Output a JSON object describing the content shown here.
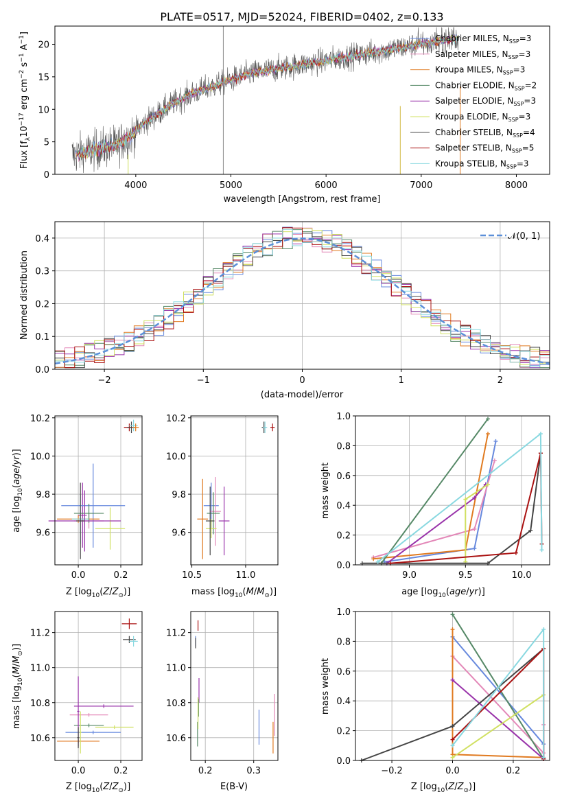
{
  "chart_data": [
    {
      "id": "spectrum",
      "type": "line",
      "title": "PLATE=0517, MJD=52024, FIBERID=0402, z=0.133",
      "xlabel": "wavelength [Angstrom, rest frame]",
      "ylabel": "Flux [f_λ10^-17 erg cm^-2 s^-1 A^-1]",
      "xlim": [
        3150,
        8350
      ],
      "ylim": [
        0,
        22.8
      ],
      "xticks": [
        "4000",
        "5000",
        "6000",
        "7000",
        "8000"
      ],
      "yticks": [
        "0",
        "5",
        "10",
        "15",
        "20"
      ],
      "grid": false,
      "legend_position": "top-right",
      "legend": [
        "Chabrier MILES, N_SSP=3",
        "Salpeter MILES, N_SSP=3",
        "Kroupa MILES, N_SSP=3",
        "Chabrier ELODIE, N_SSP=2",
        "Salpeter ELODIE, N_SSP=3",
        "Kroupa ELODIE, N_SSP=3",
        "Chabrier STELIB, N_SSP=4",
        "Salpeter STELIB, N_SSP=5",
        "Kroupa STELIB, N_SSP=3"
      ],
      "series_colors": [
        "#6688dd",
        "#e388b8",
        "#e07a20",
        "#558866",
        "#9933aa",
        "#d0e060",
        "#444444",
        "#aa1111",
        "#88d8e0"
      ],
      "continuum": {
        "x": [
          3350,
          3500,
          3650,
          3800,
          3950,
          4100,
          4250,
          4400,
          4600,
          4800,
          5000,
          5200,
          5400,
          5600,
          5800,
          6000,
          6200,
          6400,
          6600,
          6800,
          7000,
          7200,
          7400
        ],
        "y": [
          3,
          3.5,
          4,
          4.5,
          6,
          8,
          9.5,
          11,
          12.5,
          13.5,
          14.5,
          15.5,
          16,
          16.5,
          17,
          17.5,
          18,
          18.5,
          19,
          19.5,
          20,
          20.5,
          21
        ]
      }
    },
    {
      "id": "residuals",
      "type": "histogram",
      "xlabel": "(data-model)/error",
      "ylabel": "Normed distribution",
      "xlim": [
        -2.5,
        2.5
      ],
      "ylim": [
        0,
        0.45
      ],
      "xticks": [
        "−2",
        "−1",
        "0",
        "1",
        "2"
      ],
      "yticks": [
        "0.0",
        "0.1",
        "0.2",
        "0.3",
        "0.4"
      ],
      "grid": true,
      "legend_position": "top-right",
      "legend": [
        "𝒩(0, 1)"
      ],
      "reference_curve": {
        "mean": 0,
        "sigma": 1,
        "color": "#5b8fd8"
      },
      "bins": 50
    },
    {
      "id": "age-vs-Z",
      "type": "errorbar",
      "xlabel": "Z [log10(Z/Z⊙)]",
      "ylabel": "age  [log10(age/yr)]",
      "xlim": [
        -0.11,
        0.3
      ],
      "ylim": [
        9.43,
        10.21
      ],
      "xticks": [
        {
          "v": 0,
          "t": "0.0"
        },
        {
          "v": 0.2,
          "t": "0.2"
        }
      ],
      "yticks": [
        {
          "v": 9.6,
          "t": "9.6"
        },
        {
          "v": 9.8,
          "t": "9.8"
        },
        {
          "v": 10,
          "t": "10.0"
        },
        {
          "v": 10.2,
          "t": "10.2"
        }
      ],
      "points": [
        {
          "x": 0.02,
          "y": 9.69,
          "xerr": 0.02,
          "yerr": 0.17,
          "color": "#9933aa"
        },
        {
          "x": 0.07,
          "y": 9.74,
          "xerr": 0.15,
          "yerr": 0.22,
          "color": "#6688dd"
        },
        {
          "x": 0.05,
          "y": 9.66,
          "xerr": 0.07,
          "yerr": 0.04,
          "color": "#e388b8"
        },
        {
          "x": 0.0,
          "y": 9.67,
          "xerr": 0.1,
          "yerr": 0.02,
          "color": "#e07a20"
        },
        {
          "x": 0.05,
          "y": 9.7,
          "xerr": 0.07,
          "yerr": 0.05,
          "color": "#558866"
        },
        {
          "x": 0.15,
          "y": 9.62,
          "xerr": 0.07,
          "yerr": 0.11,
          "color": "#d0e060"
        },
        {
          "x": 0.01,
          "y": 9.67,
          "xerr": 0.04,
          "yerr": 0.13,
          "color": "#88d8e0"
        },
        {
          "x": 0.03,
          "y": 9.66,
          "xerr": 0.17,
          "yerr": 0.16,
          "color": "#9933aa"
        },
        {
          "x": 0.01,
          "y": 9.66,
          "xerr": 0.02,
          "yerr": 0.2,
          "color": "#444444"
        },
        {
          "x": 0.24,
          "y": 10.15,
          "xerr": 0.025,
          "yerr": 0.02,
          "color": "#aa1111"
        },
        {
          "x": 0.25,
          "y": 10.15,
          "xerr": 0.02,
          "yerr": 0.03,
          "color": "#444444"
        },
        {
          "x": 0.26,
          "y": 10.16,
          "xerr": 0.02,
          "yerr": 0.03,
          "color": "#88d8e0"
        },
        {
          "x": 0.27,
          "y": 10.15,
          "xerr": 0.015,
          "yerr": 0.02,
          "color": "#e07a20"
        }
      ]
    },
    {
      "id": "age-vs-mass",
      "type": "errorbar",
      "xlabel": "mass [log10(M/M⊙)]",
      "ylabel": "",
      "xlim": [
        10.49,
        11.3
      ],
      "ylim": [
        9.43,
        10.21
      ],
      "xticks": [
        {
          "v": 10.5,
          "t": "10.5"
        },
        {
          "v": 11,
          "t": "11.0"
        }
      ],
      "yticks": [
        {
          "v": 9.6,
          "t": "9.6"
        },
        {
          "v": 9.8,
          "t": "9.8"
        },
        {
          "v": 10,
          "t": "10.0"
        },
        {
          "v": 10.2,
          "t": "10.2"
        }
      ],
      "points": [
        {
          "x": 10.68,
          "y": 9.74,
          "xerr": 0.07,
          "yerr": 0.12,
          "color": "#6688dd"
        },
        {
          "x": 10.6,
          "y": 9.67,
          "xerr": 0.05,
          "yerr": 0.21,
          "color": "#e07a20"
        },
        {
          "x": 10.72,
          "y": 9.71,
          "xerr": 0.05,
          "yerr": 0.18,
          "color": "#e388b8"
        },
        {
          "x": 10.7,
          "y": 9.7,
          "xerr": 0.06,
          "yerr": 0.11,
          "color": "#558866"
        },
        {
          "x": 10.8,
          "y": 9.66,
          "xerr": 0.05,
          "yerr": 0.18,
          "color": "#9933aa"
        },
        {
          "x": 10.68,
          "y": 9.62,
          "xerr": 0.05,
          "yerr": 0.05,
          "color": "#d0e060"
        },
        {
          "x": 10.67,
          "y": 9.66,
          "xerr": 0.04,
          "yerr": 0.18,
          "color": "#444444"
        },
        {
          "x": 11.17,
          "y": 10.15,
          "xerr": 0.02,
          "yerr": 0.03,
          "color": "#444444"
        },
        {
          "x": 11.18,
          "y": 10.15,
          "xerr": 0.02,
          "yerr": 0.03,
          "color": "#88d8e0"
        },
        {
          "x": 11.25,
          "y": 10.15,
          "xerr": 0.02,
          "yerr": 0.02,
          "color": "#aa1111"
        }
      ]
    },
    {
      "id": "mass-weight-vs-age",
      "type": "line",
      "xlabel": "age  [log10(age/yr)]",
      "ylabel": "mass weight",
      "xlim": [
        8.52,
        10.25
      ],
      "ylim": [
        0,
        1
      ],
      "xticks": [
        {
          "v": 9,
          "t": "9.0"
        },
        {
          "v": 9.5,
          "t": "9.5"
        },
        {
          "v": 10,
          "t": "10.0"
        }
      ],
      "yticks": [
        {
          "v": 0,
          "t": "0.0"
        },
        {
          "v": 0.2,
          "t": "0.2"
        },
        {
          "v": 0.4,
          "t": "0.4"
        },
        {
          "v": 0.6,
          "t": "0.6"
        },
        {
          "v": 0.8,
          "t": "0.8"
        },
        {
          "v": 1,
          "t": "1.0"
        }
      ],
      "series": [
        {
          "color": "#6688dd",
          "points": [
            [
              8.78,
              0.02
            ],
            [
              9.58,
              0.11
            ],
            [
              9.77,
              0.83
            ]
          ]
        },
        {
          "color": "#e388b8",
          "points": [
            [
              8.68,
              0.05
            ],
            [
              9.58,
              0.24
            ],
            [
              9.76,
              0.7
            ]
          ]
        },
        {
          "color": "#e07a20",
          "points": [
            [
              8.68,
              0.04
            ],
            [
              9.5,
              0.1
            ],
            [
              9.7,
              0.88
            ]
          ]
        },
        {
          "color": "#558866",
          "points": [
            [
              8.75,
              0.01
            ],
            [
              9.7,
              0.98
            ]
          ]
        },
        {
          "color": "#9933aa",
          "points": [
            [
              8.8,
              0.01
            ],
            [
              9.58,
              0.45
            ],
            [
              9.68,
              0.54
            ]
          ]
        },
        {
          "color": "#d0e060",
          "points": [
            [
              9.5,
              0.02
            ],
            [
              9.5,
              0.44
            ],
            [
              9.7,
              0.54
            ]
          ]
        },
        {
          "color": "#444444",
          "points": [
            [
              8.58,
              0.01
            ],
            [
              9.7,
              0.01
            ],
            [
              10.08,
              0.23
            ],
            [
              10.17,
              0.75
            ]
          ]
        },
        {
          "color": "#aa1111",
          "points": [
            [
              8.83,
              0.01
            ],
            [
              9.95,
              0.08
            ],
            [
              10.17,
              0.75
            ],
            [
              10.18,
              0.14
            ]
          ]
        },
        {
          "color": "#88d8e0",
          "points": [
            [
              8.72,
              0.02
            ],
            [
              10.17,
              0.88
            ],
            [
              10.18,
              0.1
            ]
          ]
        }
      ]
    },
    {
      "id": "mass-vs-Z",
      "type": "errorbar",
      "xlabel": "Z [log10(Z/Z⊙)]",
      "ylabel": "mass [log10(M/M⊙)]",
      "xlim": [
        -0.11,
        0.3
      ],
      "ylim": [
        10.47,
        11.32
      ],
      "xticks": [
        {
          "v": 0,
          "t": "0.0"
        },
        {
          "v": 0.2,
          "t": "0.2"
        }
      ],
      "yticks": [
        {
          "v": 10.6,
          "t": "10.6"
        },
        {
          "v": 10.8,
          "t": "10.8"
        },
        {
          "v": 11,
          "t": "11.0"
        },
        {
          "v": 11.2,
          "t": "11.2"
        }
      ],
      "points": [
        {
          "x": 0.07,
          "y": 10.63,
          "xerr": 0.13,
          "yerr": 0.01,
          "color": "#6688dd"
        },
        {
          "x": 0.0,
          "y": 10.58,
          "xerr": 0.1,
          "yerr": 0.01,
          "color": "#e07a20"
        },
        {
          "x": 0.05,
          "y": 10.73,
          "xerr": 0.09,
          "yerr": 0.01,
          "color": "#e388b8"
        },
        {
          "x": 0.05,
          "y": 10.67,
          "xerr": 0.07,
          "yerr": 0.01,
          "color": "#558866"
        },
        {
          "x": 0.17,
          "y": 10.66,
          "xerr": 0.09,
          "yerr": 0.01,
          "color": "#d0e060"
        },
        {
          "x": 0.12,
          "y": 10.78,
          "xerr": 0.14,
          "yerr": 0.01,
          "color": "#9933aa"
        },
        {
          "x": 0.0,
          "y": 10.75,
          "xerr": 0.005,
          "yerr": 0.2,
          "color": "#9933aa"
        },
        {
          "x": 0.01,
          "y": 10.63,
          "xerr": 0.005,
          "yerr": 0.12,
          "color": "#d0e060"
        },
        {
          "x": 0.0,
          "y": 10.6,
          "xerr": 0.005,
          "yerr": 0.06,
          "color": "#444444"
        },
        {
          "x": 0.24,
          "y": 11.25,
          "xerr": 0.035,
          "yerr": 0.03,
          "color": "#aa1111"
        },
        {
          "x": 0.24,
          "y": 11.16,
          "xerr": 0.03,
          "yerr": 0.02,
          "color": "#444444"
        },
        {
          "x": 0.26,
          "y": 11.15,
          "xerr": 0.02,
          "yerr": 0.03,
          "color": "#88d8e0"
        }
      ]
    },
    {
      "id": "mass-vs-EBV",
      "type": "errorbar",
      "xlabel": "E(B-V)",
      "ylabel": "",
      "xlim": [
        0.17,
        0.35
      ],
      "ylim": [
        10.47,
        11.32
      ],
      "xticks": [
        {
          "v": 0.2,
          "t": "0.2"
        },
        {
          "v": 0.3,
          "t": "0.3"
        }
      ],
      "yticks": [
        {
          "v": 10.6,
          "t": "10.6"
        },
        {
          "v": 10.8,
          "t": "10.8"
        },
        {
          "v": 11,
          "t": "11.0"
        },
        {
          "v": 11.2,
          "t": "11.2"
        }
      ],
      "points": [
        {
          "x": 0.18,
          "y": 11.15,
          "xerr": 0.0,
          "yerr": 0.03,
          "color": "#6688dd"
        },
        {
          "x": 0.18,
          "y": 11.14,
          "xerr": 0.0,
          "yerr": 0.03,
          "color": "#444444"
        },
        {
          "x": 0.185,
          "y": 11.24,
          "xerr": 0.0,
          "yerr": 0.03,
          "color": "#aa1111"
        },
        {
          "x": 0.187,
          "y": 10.87,
          "xerr": 0.0,
          "yerr": 0.07,
          "color": "#9933aa"
        },
        {
          "x": 0.186,
          "y": 10.77,
          "xerr": 0.0,
          "yerr": 0.05,
          "color": "#558866"
        },
        {
          "x": 0.184,
          "y": 10.62,
          "xerr": 0.0,
          "yerr": 0.07,
          "color": "#558866"
        },
        {
          "x": 0.185,
          "y": 10.74,
          "xerr": 0.0,
          "yerr": 0.09,
          "color": "#d0e060"
        },
        {
          "x": 0.311,
          "y": 10.66,
          "xerr": 0.0,
          "yerr": 0.1,
          "color": "#6688dd"
        },
        {
          "x": 0.34,
          "y": 10.6,
          "xerr": 0.0,
          "yerr": 0.09,
          "color": "#e07a20"
        },
        {
          "x": 0.343,
          "y": 10.73,
          "xerr": 0.0,
          "yerr": 0.12,
          "color": "#e388b8"
        }
      ]
    },
    {
      "id": "mass-weight-vs-Z",
      "type": "line",
      "xlabel": "Z [log10(Z/Z⊙)]",
      "ylabel": "mass weight",
      "xlim": [
        -0.32,
        0.32
      ],
      "ylim": [
        0,
        1
      ],
      "xticks": [
        {
          "v": -0.2,
          "t": "−0.2"
        },
        {
          "v": 0,
          "t": "0.0"
        },
        {
          "v": 0.2,
          "t": "0.2"
        }
      ],
      "yticks": [
        {
          "v": 0,
          "t": "0.0"
        },
        {
          "v": 0.2,
          "t": "0.2"
        },
        {
          "v": 0.4,
          "t": "0.4"
        },
        {
          "v": 0.6,
          "t": "0.6"
        },
        {
          "v": 0.8,
          "t": "0.8"
        },
        {
          "v": 1,
          "t": "1.0"
        }
      ],
      "series": [
        {
          "color": "#6688dd",
          "points": [
            [
              0.0,
              0.83
            ],
            [
              0.3,
              0.11
            ],
            [
              0.3,
              0.02
            ]
          ]
        },
        {
          "color": "#e388b8",
          "points": [
            [
              0.0,
              0.7
            ],
            [
              0.3,
              0.05
            ],
            [
              0.3,
              0.24
            ]
          ]
        },
        {
          "color": "#e07a20",
          "points": [
            [
              0.0,
              0.88
            ],
            [
              0.0,
              0.04
            ],
            [
              0.3,
              0.02
            ]
          ]
        },
        {
          "color": "#558866",
          "points": [
            [
              0.0,
              0.98
            ],
            [
              0.3,
              0.01
            ]
          ]
        },
        {
          "color": "#9933aa",
          "points": [
            [
              0.0,
              0.54
            ],
            [
              0.3,
              0.01
            ]
          ]
        },
        {
          "color": "#d0e060",
          "points": [
            [
              0.0,
              0.02
            ],
            [
              0.3,
              0.44
            ]
          ]
        },
        {
          "color": "#444444",
          "points": [
            [
              -0.3,
              0.0
            ],
            [
              0.0,
              0.23
            ],
            [
              0.3,
              0.75
            ]
          ]
        },
        {
          "color": "#aa1111",
          "points": [
            [
              0.0,
              0.14
            ],
            [
              0.3,
              0.75
            ],
            [
              0.3,
              0.01
            ]
          ]
        },
        {
          "color": "#88d8e0",
          "points": [
            [
              0.0,
              0.1
            ],
            [
              0.3,
              0.88
            ],
            [
              0.3,
              0.02
            ]
          ]
        }
      ]
    }
  ]
}
